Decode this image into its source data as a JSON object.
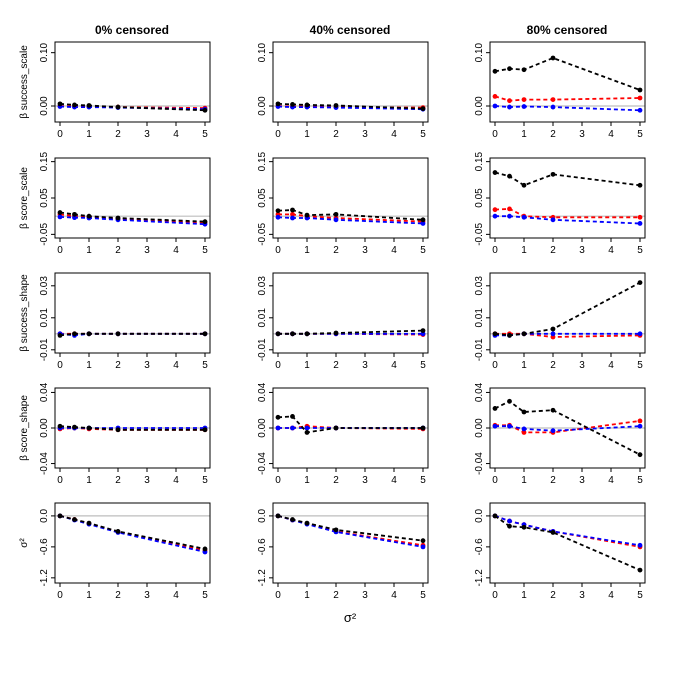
{
  "figure": {
    "xlabel": "σ²",
    "col_titles": [
      "0% censored",
      "40% censored",
      "80% censored"
    ],
    "series_colors": {
      "black": "#000000",
      "red": "#ff0000",
      "blue": "#0000ff",
      "reference": "#bebebe"
    }
  },
  "chart_data": [
    {
      "type": "line",
      "title": "0% censored",
      "ylabel": "β success_scale",
      "xlim": [
        0,
        5
      ],
      "ylim": [
        -0.03,
        0.12
      ],
      "yticks": [
        0,
        0.1
      ],
      "ytick_labels": [
        "0.00",
        "0.10"
      ],
      "xticks": [
        0,
        1,
        2,
        3,
        4,
        5
      ],
      "xtick_labels": [
        "0",
        "1",
        "2",
        "3",
        "4",
        "5"
      ],
      "reference_y": 0,
      "x": [
        0,
        0.5,
        1,
        2,
        5
      ],
      "series": [
        {
          "name": "black",
          "values": [
            0.004,
            0.002,
            0.001,
            -0.002,
            -0.008
          ]
        },
        {
          "name": "red",
          "values": [
            0.0,
            -0.001,
            -0.001,
            -0.002,
            -0.004
          ]
        },
        {
          "name": "blue",
          "values": [
            -0.001,
            -0.002,
            -0.002,
            -0.003,
            -0.006
          ]
        }
      ]
    },
    {
      "type": "line",
      "title": "40% censored",
      "ylabel": "",
      "xlim": [
        0,
        5
      ],
      "ylim": [
        -0.03,
        0.12
      ],
      "yticks": [
        0,
        0.1
      ],
      "ytick_labels": [
        "0.00",
        "0.10"
      ],
      "xticks": [
        0,
        1,
        2,
        3,
        4,
        5
      ],
      "xtick_labels": [
        "0",
        "1",
        "2",
        "3",
        "4",
        "5"
      ],
      "reference_y": 0,
      "x": [
        0,
        0.5,
        1,
        2,
        5
      ],
      "series": [
        {
          "name": "black",
          "values": [
            0.004,
            0.003,
            0.002,
            0.001,
            -0.005
          ]
        },
        {
          "name": "red",
          "values": [
            0.0,
            -0.001,
            -0.001,
            -0.002,
            -0.003
          ]
        },
        {
          "name": "blue",
          "values": [
            -0.001,
            -0.002,
            -0.002,
            -0.003,
            -0.006
          ]
        }
      ]
    },
    {
      "type": "line",
      "title": "80% censored",
      "ylabel": "",
      "xlim": [
        0,
        5
      ],
      "ylim": [
        -0.03,
        0.12
      ],
      "yticks": [
        0,
        0.1
      ],
      "ytick_labels": [
        "0.00",
        "0.10"
      ],
      "xticks": [
        0,
        1,
        2,
        3,
        4,
        5
      ],
      "xtick_labels": [
        "0",
        "1",
        "2",
        "3",
        "4",
        "5"
      ],
      "reference_y": 0,
      "x": [
        0,
        0.5,
        1,
        2,
        5
      ],
      "series": [
        {
          "name": "black",
          "values": [
            0.065,
            0.07,
            0.068,
            0.09,
            0.03
          ]
        },
        {
          "name": "red",
          "values": [
            0.018,
            0.01,
            0.012,
            0.012,
            0.015
          ]
        },
        {
          "name": "blue",
          "values": [
            0.0,
            -0.002,
            -0.001,
            -0.002,
            -0.008
          ]
        }
      ]
    },
    {
      "type": "line",
      "title": "",
      "ylabel": "β score_scale",
      "xlim": [
        0,
        5
      ],
      "ylim": [
        -0.06,
        0.16
      ],
      "yticks": [
        -0.05,
        0.05,
        0.15
      ],
      "ytick_labels": [
        "-0.05",
        "0.05",
        "0.15"
      ],
      "xticks": [
        0,
        1,
        2,
        3,
        4,
        5
      ],
      "xtick_labels": [
        "0",
        "1",
        "2",
        "3",
        "4",
        "5"
      ],
      "reference_y": 0,
      "x": [
        0,
        0.5,
        1,
        2,
        5
      ],
      "series": [
        {
          "name": "black",
          "values": [
            0.01,
            0.005,
            0.0,
            -0.005,
            -0.015
          ]
        },
        {
          "name": "red",
          "values": [
            0.005,
            0.0,
            -0.002,
            -0.007,
            -0.018
          ]
        },
        {
          "name": "blue",
          "values": [
            -0.002,
            -0.004,
            -0.005,
            -0.01,
            -0.022
          ]
        }
      ]
    },
    {
      "type": "line",
      "title": "",
      "ylabel": "",
      "xlim": [
        0,
        5
      ],
      "ylim": [
        -0.06,
        0.16
      ],
      "yticks": [
        -0.05,
        0.05,
        0.15
      ],
      "ytick_labels": [
        "-0.05",
        "0.05",
        "0.15"
      ],
      "xticks": [
        0,
        1,
        2,
        3,
        4,
        5
      ],
      "xtick_labels": [
        "0",
        "1",
        "2",
        "3",
        "4",
        "5"
      ],
      "reference_y": 0,
      "x": [
        0,
        0.5,
        1,
        2,
        5
      ],
      "series": [
        {
          "name": "black",
          "values": [
            0.015,
            0.017,
            0.003,
            0.005,
            -0.01
          ]
        },
        {
          "name": "red",
          "values": [
            0.005,
            0.005,
            0.0,
            -0.005,
            -0.015
          ]
        },
        {
          "name": "blue",
          "values": [
            -0.003,
            -0.005,
            -0.005,
            -0.01,
            -0.02
          ]
        }
      ]
    },
    {
      "type": "line",
      "title": "",
      "ylabel": "",
      "xlim": [
        0,
        5
      ],
      "ylim": [
        -0.06,
        0.16
      ],
      "yticks": [
        -0.05,
        0.05,
        0.15
      ],
      "ytick_labels": [
        "-0.05",
        "0.05",
        "0.15"
      ],
      "xticks": [
        0,
        1,
        2,
        3,
        4,
        5
      ],
      "xtick_labels": [
        "0",
        "1",
        "2",
        "3",
        "4",
        "5"
      ],
      "reference_y": 0,
      "x": [
        0,
        0.5,
        1,
        2,
        5
      ],
      "series": [
        {
          "name": "black",
          "values": [
            0.12,
            0.11,
            0.085,
            0.115,
            0.085
          ]
        },
        {
          "name": "red",
          "values": [
            0.018,
            0.02,
            0.0,
            -0.003,
            -0.003
          ]
        },
        {
          "name": "blue",
          "values": [
            0.0,
            0.0,
            -0.003,
            -0.01,
            -0.02
          ]
        }
      ]
    },
    {
      "type": "line",
      "title": "",
      "ylabel": "β success_shape",
      "xlim": [
        0,
        5
      ],
      "ylim": [
        -0.012,
        0.038
      ],
      "yticks": [
        -0.01,
        0.01,
        0.03
      ],
      "ytick_labels": [
        "-0.01",
        "0.01",
        "0.03"
      ],
      "xticks": [
        0,
        1,
        2,
        3,
        4,
        5
      ],
      "xtick_labels": [
        "0",
        "1",
        "2",
        "3",
        "4",
        "5"
      ],
      "reference_y": 0,
      "x": [
        0,
        0.5,
        1,
        2,
        5
      ],
      "series": [
        {
          "name": "black",
          "values": [
            -0.001,
            0.0,
            0.0,
            0.0,
            0.0
          ]
        },
        {
          "name": "red",
          "values": [
            0.0,
            0.0,
            0.0,
            0.0,
            0.0
          ]
        },
        {
          "name": "blue",
          "values": [
            0.0,
            -0.001,
            0.0,
            0.0,
            0.0
          ]
        }
      ]
    },
    {
      "type": "line",
      "title": "",
      "ylabel": "",
      "xlim": [
        0,
        5
      ],
      "ylim": [
        -0.012,
        0.038
      ],
      "yticks": [
        -0.01,
        0.01,
        0.03
      ],
      "ytick_labels": [
        "-0.01",
        "0.01",
        "0.03"
      ],
      "xticks": [
        0,
        1,
        2,
        3,
        4,
        5
      ],
      "xtick_labels": [
        "0",
        "1",
        "2",
        "3",
        "4",
        "5"
      ],
      "reference_y": 0,
      "x": [
        0,
        0.5,
        1,
        2,
        5
      ],
      "series": [
        {
          "name": "black",
          "values": [
            0.0,
            0.0,
            0.0,
            0.0005,
            0.002
          ]
        },
        {
          "name": "red",
          "values": [
            0.0,
            0.0,
            0.0,
            0.0,
            -0.0005
          ]
        },
        {
          "name": "blue",
          "values": [
            0.0,
            0.0,
            0.0,
            0.0,
            0.0
          ]
        }
      ]
    },
    {
      "type": "line",
      "title": "",
      "ylabel": "",
      "xlim": [
        0,
        5
      ],
      "ylim": [
        -0.012,
        0.038
      ],
      "yticks": [
        -0.01,
        0.01,
        0.03
      ],
      "ytick_labels": [
        "-0.01",
        "0.01",
        "0.03"
      ],
      "xticks": [
        0,
        1,
        2,
        3,
        4,
        5
      ],
      "xtick_labels": [
        "0",
        "1",
        "2",
        "3",
        "4",
        "5"
      ],
      "reference_y": 0,
      "x": [
        0,
        0.5,
        1,
        2,
        5
      ],
      "series": [
        {
          "name": "black",
          "values": [
            0.0,
            -0.001,
            0.0,
            0.003,
            0.032
          ]
        },
        {
          "name": "red",
          "values": [
            0.0,
            0.0,
            0.0,
            -0.002,
            -0.001
          ]
        },
        {
          "name": "blue",
          "values": [
            -0.001,
            -0.001,
            0.0,
            0.0,
            0.0
          ]
        }
      ]
    },
    {
      "type": "line",
      "title": "",
      "ylabel": "β score_shape",
      "xlim": [
        0,
        5
      ],
      "ylim": [
        -0.045,
        0.045
      ],
      "yticks": [
        -0.04,
        0.0,
        0.04
      ],
      "ytick_labels": [
        "-0.04",
        "0.00",
        "0.04"
      ],
      "xticks": [
        0,
        1,
        2,
        3,
        4,
        5
      ],
      "xtick_labels": [
        "0",
        "1",
        "2",
        "3",
        "4",
        "5"
      ],
      "reference_y": 0,
      "x": [
        0,
        0.5,
        1,
        2,
        5
      ],
      "series": [
        {
          "name": "black",
          "values": [
            0.002,
            0.001,
            0.0,
            -0.002,
            -0.002
          ]
        },
        {
          "name": "red",
          "values": [
            -0.001,
            0.0,
            -0.001,
            -0.002,
            -0.002
          ]
        },
        {
          "name": "blue",
          "values": [
            0.0,
            0.0,
            0.0,
            0.0,
            0.0
          ]
        }
      ]
    },
    {
      "type": "line",
      "title": "",
      "ylabel": "",
      "xlim": [
        0,
        5
      ],
      "ylim": [
        -0.045,
        0.045
      ],
      "yticks": [
        -0.04,
        0.0,
        0.04
      ],
      "ytick_labels": [
        "-0.04",
        "0.00",
        "0.04"
      ],
      "xticks": [
        0,
        1,
        2,
        3,
        4,
        5
      ],
      "xtick_labels": [
        "0",
        "1",
        "2",
        "3",
        "4",
        "5"
      ],
      "reference_y": 0,
      "x": [
        0,
        0.5,
        1,
        2,
        5
      ],
      "series": [
        {
          "name": "black",
          "values": [
            0.012,
            0.013,
            -0.005,
            0.0,
            0.0
          ]
        },
        {
          "name": "red",
          "values": [
            0.0,
            0.0,
            0.002,
            0.0,
            -0.001
          ]
        },
        {
          "name": "blue",
          "values": [
            0.0,
            0.0,
            0.0,
            0.0,
            0.0
          ]
        }
      ]
    },
    {
      "type": "line",
      "title": "",
      "ylabel": "",
      "xlim": [
        0,
        5
      ],
      "ylim": [
        -0.045,
        0.045
      ],
      "yticks": [
        -0.04,
        0.0,
        0.04
      ],
      "ytick_labels": [
        "-0.04",
        "0.00",
        "0.04"
      ],
      "xticks": [
        0,
        1,
        2,
        3,
        4,
        5
      ],
      "xtick_labels": [
        "0",
        "1",
        "2",
        "3",
        "4",
        "5"
      ],
      "reference_y": 0,
      "x": [
        0,
        0.5,
        1,
        2,
        5
      ],
      "series": [
        {
          "name": "black",
          "values": [
            0.022,
            0.03,
            0.018,
            0.02,
            -0.03
          ]
        },
        {
          "name": "red",
          "values": [
            0.003,
            0.003,
            -0.005,
            -0.005,
            0.008
          ]
        },
        {
          "name": "blue",
          "values": [
            0.002,
            0.002,
            -0.001,
            -0.003,
            0.002
          ]
        }
      ]
    },
    {
      "type": "line",
      "title": "",
      "ylabel": "σ²",
      "xlim": [
        0,
        5
      ],
      "ylim": [
        -1.3,
        0.25
      ],
      "yticks": [
        -1.2,
        -0.6,
        0.0
      ],
      "ytick_labels": [
        "-1.2",
        "-0.6",
        "0.0"
      ],
      "xticks": [
        0,
        1,
        2,
        3,
        4,
        5
      ],
      "xtick_labels": [
        "0",
        "1",
        "2",
        "3",
        "4",
        "5"
      ],
      "reference_y": 0,
      "x": [
        0,
        0.5,
        1,
        2,
        5
      ],
      "series": [
        {
          "name": "black",
          "values": [
            0.0,
            -0.07,
            -0.14,
            -0.3,
            -0.64
          ]
        },
        {
          "name": "red",
          "values": [
            0.0,
            -0.07,
            -0.15,
            -0.31,
            -0.67
          ]
        },
        {
          "name": "blue",
          "values": [
            0.0,
            -0.08,
            -0.16,
            -0.32,
            -0.7
          ]
        }
      ]
    },
    {
      "type": "line",
      "title": "",
      "ylabel": "",
      "xlim": [
        0,
        5
      ],
      "ylim": [
        -1.3,
        0.25
      ],
      "yticks": [
        -1.2,
        -0.6,
        0.0
      ],
      "ytick_labels": [
        "-1.2",
        "-0.6",
        "0.0"
      ],
      "xticks": [
        0,
        1,
        2,
        3,
        4,
        5
      ],
      "xtick_labels": [
        "0",
        "1",
        "2",
        "3",
        "4",
        "5"
      ],
      "reference_y": 0,
      "x": [
        0,
        0.5,
        1,
        2,
        5
      ],
      "series": [
        {
          "name": "black",
          "values": [
            0.0,
            -0.07,
            -0.14,
            -0.27,
            -0.48
          ]
        },
        {
          "name": "red",
          "values": [
            0.0,
            -0.08,
            -0.15,
            -0.3,
            -0.57
          ]
        },
        {
          "name": "blue",
          "values": [
            0.0,
            -0.08,
            -0.16,
            -0.31,
            -0.6
          ]
        }
      ]
    },
    {
      "type": "line",
      "title": "",
      "ylabel": "",
      "xlim": [
        0,
        5
      ],
      "ylim": [
        -1.3,
        0.25
      ],
      "yticks": [
        -1.2,
        -0.6,
        0.0
      ],
      "ytick_labels": [
        "-1.2",
        "-0.6",
        "0.0"
      ],
      "xticks": [
        0,
        1,
        2,
        3,
        4,
        5
      ],
      "xtick_labels": [
        "0",
        "1",
        "2",
        "3",
        "4",
        "5"
      ],
      "reference_y": 0,
      "x": [
        0,
        0.5,
        1,
        2,
        5
      ],
      "series": [
        {
          "name": "black",
          "values": [
            0.0,
            -0.2,
            -0.22,
            -0.32,
            -1.05
          ]
        },
        {
          "name": "red",
          "values": [
            0.0,
            -0.1,
            -0.17,
            -0.3,
            -0.6
          ]
        },
        {
          "name": "blue",
          "values": [
            0.0,
            -0.1,
            -0.17,
            -0.3,
            -0.57
          ]
        }
      ]
    }
  ]
}
